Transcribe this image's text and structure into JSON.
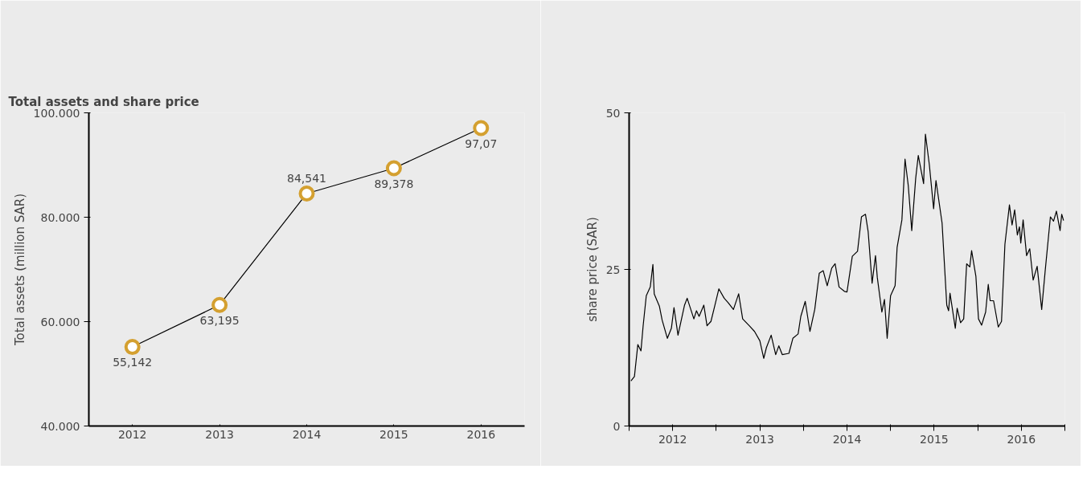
{
  "chart_data": [
    {
      "type": "line",
      "title": "Total assets and share price",
      "ylabel": "Total assets (million SAR)",
      "categories": [
        "2012",
        "2013",
        "2014",
        "2015",
        "2016"
      ],
      "series": [
        {
          "color": "#d4a030",
          "values": [
            55142,
            63195,
            84541,
            89378,
            97070
          ]
        }
      ],
      "value_labels": [
        "55,142",
        "63,195",
        "84,541",
        "89,378",
        "97,07"
      ],
      "ylim": [
        40000,
        100000
      ],
      "yticks": [
        {
          "value": 40000,
          "label": "40.000"
        },
        {
          "value": 60000,
          "label": "60.000"
        },
        {
          "value": 80000,
          "label": "80.000"
        },
        {
          "value": 100000,
          "label": "100.000"
        }
      ],
      "marker": "circle",
      "grid": false
    },
    {
      "type": "line",
      "ylabel": "share price (SAR)",
      "x": [
        2012.021,
        2012.061,
        2012.1,
        2012.136,
        2012.161,
        2012.197,
        2012.243,
        2012.273,
        2012.288,
        2012.348,
        2012.379,
        2012.439,
        2012.485,
        2012.515,
        2012.561,
        2012.636,
        2012.666,
        2012.743,
        2012.773,
        2012.803,
        2012.857,
        2012.894,
        2012.939,
        2012.985,
        2013.03,
        2013.091,
        2013.136,
        2013.197,
        2013.257,
        2013.303,
        2013.379,
        2013.439,
        2013.5,
        2013.545,
        2013.575,
        2013.63,
        2013.682,
        2013.718,
        2013.757,
        2013.834,
        2013.879,
        2013.939,
        2013.97,
        2014.021,
        2014.075,
        2014.13,
        2014.182,
        2014.227,
        2014.273,
        2014.325,
        2014.364,
        2014.409,
        2014.47,
        2014.5,
        2014.561,
        2014.621,
        2014.666,
        2014.712,
        2014.743,
        2014.788,
        2014.827,
        2014.848,
        2014.9,
        2014.93,
        2014.961,
        2015.0,
        2015.052,
        2015.075,
        2015.13,
        2015.166,
        2015.203,
        2015.243,
        2015.288,
        2015.318,
        2015.379,
        2015.4,
        2015.445,
        2015.494,
        2015.521,
        2015.591,
        2015.645,
        2015.666,
        2015.682,
        2015.743,
        2015.764,
        2015.803,
        2015.839,
        2015.873,
        2015.909,
        2015.93,
        2015.979,
        2016.009,
        2016.045,
        2016.091,
        2016.121,
        2016.143,
        2016.182,
        2016.236,
        2016.273,
        2016.312,
        2016.364,
        2016.394,
        2016.424,
        2016.455,
        2016.479,
        2016.494,
        2016.521,
        2016.561,
        2016.597,
        2016.636,
        2016.682,
        2016.734,
        2016.773,
        2016.834,
        2016.87,
        2016.903,
        2016.945,
        2016.964,
        2016.985
      ],
      "series": [
        {
          "color": "#000000",
          "values": [
            7.2,
            7.9,
            13.0,
            12.0,
            16.0,
            20.8,
            22.2,
            25.8,
            21.1,
            19.1,
            16.9,
            14.0,
            15.6,
            18.9,
            14.5,
            19.3,
            20.4,
            17.1,
            18.4,
            17.5,
            19.3,
            16.0,
            16.7,
            19.3,
            21.9,
            20.4,
            19.7,
            18.6,
            21.1,
            17.1,
            16.0,
            15.1,
            13.6,
            10.8,
            12.5,
            14.5,
            11.4,
            12.8,
            11.4,
            11.6,
            14.0,
            14.7,
            17.5,
            19.9,
            15.1,
            18.6,
            24.4,
            24.8,
            22.4,
            25.2,
            25.9,
            22.2,
            21.5,
            21.4,
            27.1,
            27.9,
            33.4,
            33.8,
            31.0,
            22.8,
            27.2,
            23.7,
            18.2,
            20.2,
            14.0,
            20.8,
            22.4,
            28.5,
            32.9,
            42.6,
            38.4,
            31.2,
            39.5,
            43.2,
            38.7,
            46.6,
            41.7,
            34.7,
            39.2,
            32.4,
            19.3,
            18.4,
            21.2,
            15.6,
            18.8,
            16.5,
            17.1,
            25.9,
            25.4,
            28.0,
            23.9,
            17.1,
            16.1,
            18.2,
            22.6,
            20.0,
            20.0,
            15.8,
            16.7,
            29.0,
            35.3,
            32.1,
            34.5,
            30.5,
            31.8,
            29.2,
            32.9,
            27.2,
            28.3,
            23.3,
            25.5,
            18.6,
            24.6,
            33.4,
            32.7,
            34.3,
            31.2,
            33.8,
            32.8
          ]
        }
      ],
      "xlim": [
        2012,
        2017
      ],
      "xticks": [
        {
          "value": 2012,
          "label": null
        },
        {
          "value": 2012.5,
          "label": "2012"
        },
        {
          "value": 2013,
          "label": null
        },
        {
          "value": 2013.5,
          "label": "2013"
        },
        {
          "value": 2014,
          "label": null
        },
        {
          "value": 2014.5,
          "label": "2014"
        },
        {
          "value": 2015,
          "label": null
        },
        {
          "value": 2015.5,
          "label": "2015"
        },
        {
          "value": 2016,
          "label": null
        },
        {
          "value": 2016.5,
          "label": "2016"
        },
        {
          "value": 2017,
          "label": null
        }
      ],
      "ylim": [
        0,
        50
      ],
      "yticks": [
        0,
        25,
        50
      ],
      "marker": "none",
      "grid": false
    }
  ]
}
